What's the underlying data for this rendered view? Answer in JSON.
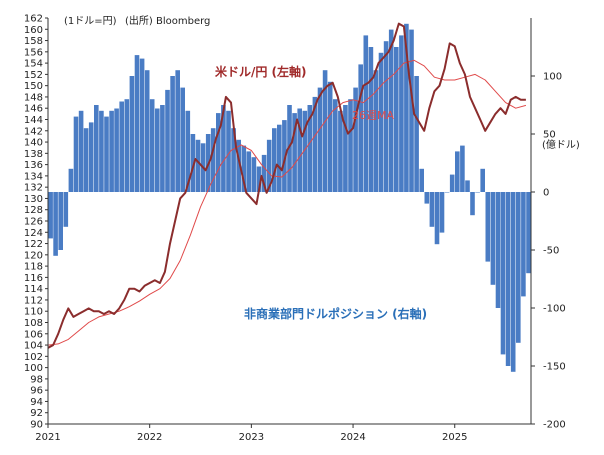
{
  "chart_data": {
    "type": "bar+line",
    "unit_note": "(1ドル=円)",
    "source_note": "(出所) Bloomberg",
    "right_axis_unit": "(億ドル)",
    "left_axis": {
      "min": 90,
      "max": 162,
      "step": 2
    },
    "right_axis": {
      "min": -200,
      "max": 150,
      "step": 50,
      "labels": [
        "100",
        "50",
        "0",
        "-50",
        "-100",
        "-150",
        "-200"
      ]
    },
    "x_axis": {
      "labels": [
        "2021",
        "2022",
        "2023",
        "2024",
        "2025"
      ]
    },
    "series": [
      {
        "name": "米ドル/円 (左軸)",
        "kind": "line",
        "axis": "left",
        "color": "#8b2d2d",
        "x": [
          2021.0,
          2021.05,
          2021.1,
          2021.15,
          2021.2,
          2021.25,
          2021.3,
          2021.35,
          2021.4,
          2021.45,
          2021.5,
          2021.55,
          2021.6,
          2021.65,
          2021.7,
          2021.75,
          2021.8,
          2021.85,
          2021.9,
          2021.95,
          2022.0,
          2022.05,
          2022.1,
          2022.15,
          2022.2,
          2022.25,
          2022.3,
          2022.35,
          2022.4,
          2022.45,
          2022.5,
          2022.55,
          2022.6,
          2022.65,
          2022.7,
          2022.75,
          2022.8,
          2022.85,
          2022.9,
          2022.95,
          2023.0,
          2023.05,
          2023.1,
          2023.15,
          2023.2,
          2023.25,
          2023.3,
          2023.35,
          2023.4,
          2023.45,
          2023.5,
          2023.55,
          2023.6,
          2023.65,
          2023.7,
          2023.75,
          2023.8,
          2023.85,
          2023.9,
          2023.95,
          2024.0,
          2024.05,
          2024.1,
          2024.15,
          2024.2,
          2024.25,
          2024.3,
          2024.35,
          2024.4,
          2024.45,
          2024.5,
          2024.55,
          2024.6,
          2024.65,
          2024.7,
          2024.75,
          2024.8,
          2024.85,
          2024.9,
          2024.95,
          2025.0,
          2025.05,
          2025.1,
          2025.15,
          2025.2,
          2025.25,
          2025.3,
          2025.35,
          2025.4,
          2025.45,
          2025.5,
          2025.55,
          2025.6,
          2025.65,
          2025.7
        ],
        "values": [
          103.5,
          104.0,
          106.0,
          108.5,
          110.5,
          109.0,
          109.5,
          110.0,
          110.5,
          110.0,
          110.0,
          109.5,
          110.0,
          109.5,
          110.5,
          112.0,
          114.0,
          114.0,
          113.5,
          114.5,
          115.0,
          115.5,
          115.0,
          117.0,
          122.0,
          126.0,
          130.0,
          131.0,
          134.0,
          137.0,
          136.0,
          135.0,
          137.0,
          140.5,
          143.0,
          148.0,
          147.0,
          139.0,
          135.0,
          131.0,
          130.0,
          129.0,
          134.0,
          131.0,
          133.0,
          136.0,
          135.0,
          138.5,
          140.0,
          144.0,
          141.0,
          143.5,
          145.0,
          147.5,
          149.0,
          150.0,
          150.5,
          148.0,
          144.0,
          141.5,
          142.5,
          146.5,
          150.0,
          150.5,
          151.5,
          154.0,
          155.0,
          156.0,
          158.0,
          161.0,
          160.5,
          152.0,
          145.0,
          143.5,
          142.0,
          146.0,
          149.0,
          150.0,
          153.0,
          157.5,
          157.0,
          154.0,
          152.0,
          148.0,
          146.0,
          144.0,
          142.0,
          143.5,
          145.0,
          146.0,
          145.0,
          147.5,
          148.0,
          147.5,
          147.5
        ]
      },
      {
        "name": "26週MA",
        "kind": "line",
        "axis": "left",
        "color": "#e04a4a",
        "x": [
          2021.0,
          2021.1,
          2021.2,
          2021.3,
          2021.4,
          2021.5,
          2021.6,
          2021.7,
          2021.8,
          2021.9,
          2022.0,
          2022.1,
          2022.2,
          2022.3,
          2022.4,
          2022.5,
          2022.6,
          2022.7,
          2022.8,
          2022.9,
          2023.0,
          2023.1,
          2023.2,
          2023.3,
          2023.4,
          2023.5,
          2023.6,
          2023.7,
          2023.8,
          2023.9,
          2024.0,
          2024.1,
          2024.2,
          2024.3,
          2024.4,
          2024.5,
          2024.6,
          2024.7,
          2024.8,
          2024.9,
          2025.0,
          2025.1,
          2025.2,
          2025.3,
          2025.4,
          2025.5,
          2025.6,
          2025.7
        ],
        "values": [
          104.0,
          104.2,
          105.0,
          106.5,
          108.0,
          109.0,
          109.5,
          110.0,
          110.8,
          111.8,
          113.0,
          114.0,
          115.8,
          119.0,
          123.5,
          128.5,
          132.5,
          136.0,
          138.5,
          139.5,
          138.5,
          136.0,
          134.0,
          133.8,
          135.5,
          138.0,
          140.5,
          143.0,
          145.5,
          147.0,
          147.5,
          147.0,
          148.5,
          150.5,
          152.0,
          154.0,
          154.5,
          153.5,
          151.5,
          151.0,
          151.0,
          151.5,
          152.0,
          151.0,
          149.0,
          147.0,
          146.0,
          146.5
        ]
      },
      {
        "name": "非商業部門ドルポジション (右軸)",
        "kind": "bar",
        "axis": "right",
        "color": "#4a7cc4",
        "x": [
          2021.0,
          2021.05,
          2021.1,
          2021.15,
          2021.2,
          2021.25,
          2021.3,
          2021.35,
          2021.4,
          2021.45,
          2021.5,
          2021.55,
          2021.6,
          2021.65,
          2021.7,
          2021.75,
          2021.8,
          2021.85,
          2021.9,
          2021.95,
          2022.0,
          2022.05,
          2022.1,
          2022.15,
          2022.2,
          2022.25,
          2022.3,
          2022.35,
          2022.4,
          2022.45,
          2022.5,
          2022.55,
          2022.6,
          2022.65,
          2022.7,
          2022.75,
          2022.8,
          2022.85,
          2022.9,
          2022.95,
          2023.0,
          2023.05,
          2023.1,
          2023.15,
          2023.2,
          2023.25,
          2023.3,
          2023.35,
          2023.4,
          2023.45,
          2023.5,
          2023.55,
          2023.6,
          2023.65,
          2023.7,
          2023.75,
          2023.8,
          2023.85,
          2023.9,
          2023.95,
          2024.0,
          2024.05,
          2024.1,
          2024.15,
          2024.2,
          2024.25,
          2024.3,
          2024.35,
          2024.4,
          2024.45,
          2024.5,
          2024.55,
          2024.6,
          2024.65,
          2024.7,
          2024.75,
          2024.8,
          2024.85,
          2024.9,
          2024.95,
          2025.0,
          2025.05,
          2025.1,
          2025.15,
          2025.2,
          2025.25,
          2025.3,
          2025.35,
          2025.4,
          2025.45,
          2025.5,
          2025.55,
          2025.6,
          2025.65,
          2025.7
        ],
        "values": [
          -40,
          -55,
          -50,
          -30,
          20,
          65,
          70,
          55,
          60,
          75,
          70,
          65,
          70,
          72,
          78,
          80,
          100,
          118,
          115,
          105,
          80,
          72,
          75,
          88,
          100,
          105,
          90,
          70,
          50,
          45,
          42,
          50,
          55,
          68,
          75,
          70,
          55,
          45,
          40,
          35,
          30,
          22,
          32,
          45,
          55,
          58,
          62,
          75,
          68,
          72,
          70,
          75,
          82,
          90,
          105,
          95,
          80,
          70,
          75,
          80,
          90,
          110,
          135,
          125,
          105,
          120,
          130,
          140,
          125,
          135,
          145,
          140,
          100,
          20,
          -10,
          -30,
          -45,
          -35,
          0,
          15,
          35,
          40,
          10,
          -20,
          0,
          20,
          -60,
          -80,
          -100,
          -140,
          -150,
          -155,
          -130,
          -90,
          -70
        ]
      }
    ]
  }
}
